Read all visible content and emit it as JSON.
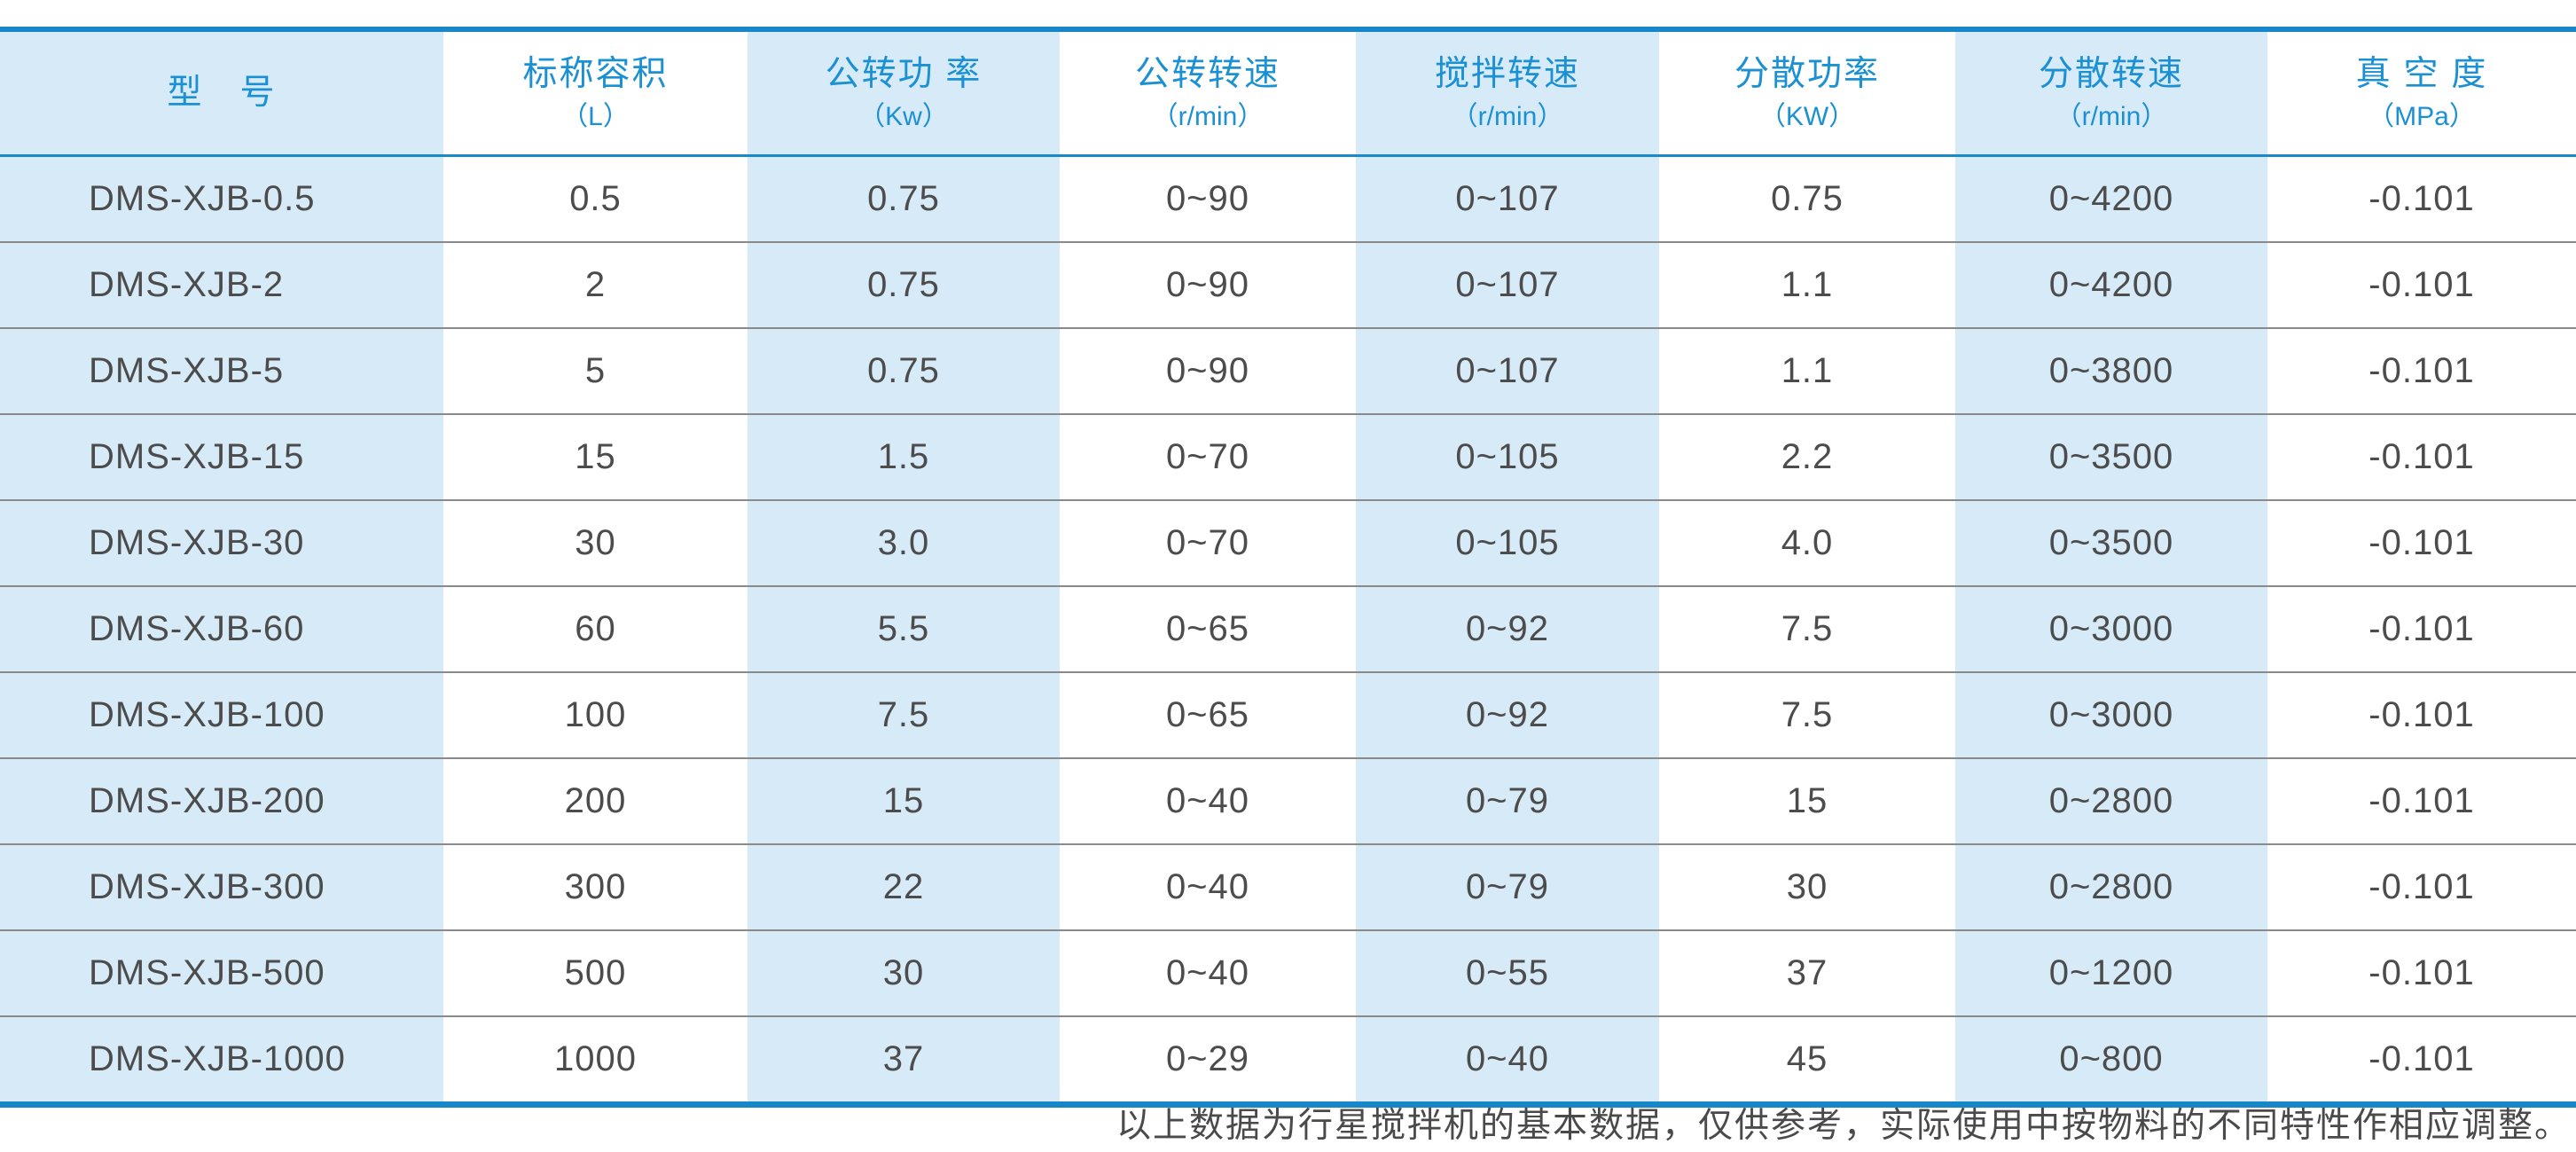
{
  "colors": {
    "accent_blue": "#1787c9",
    "header_text_blue": "#1b90d2",
    "shaded_cell_blue": "#d7eaf8",
    "body_text": "#4c4c4c",
    "row_divider": "#8a8a8a"
  },
  "table": {
    "columns": [
      {
        "title": "型　号",
        "unit": ""
      },
      {
        "title": "标称容积",
        "unit": "（L）"
      },
      {
        "title": "公转功 率",
        "unit": "（Kw）"
      },
      {
        "title": "公转转速",
        "unit": "（r/min）"
      },
      {
        "title": "搅拌转速",
        "unit": "（r/min）"
      },
      {
        "title": "分散功率",
        "unit": "（KW）"
      },
      {
        "title": "分散转速",
        "unit": "（r/min）"
      },
      {
        "title": "真 空 度",
        "unit": "（MPa）"
      }
    ],
    "rows": [
      [
        "DMS-XJB-0.5",
        "0.5",
        "0.75",
        "0~90",
        "0~107",
        "0.75",
        "0~4200",
        "-0.101"
      ],
      [
        "DMS-XJB-2",
        "2",
        "0.75",
        "0~90",
        "0~107",
        "1.1",
        "0~4200",
        "-0.101"
      ],
      [
        "DMS-XJB-5",
        "5",
        "0.75",
        "0~90",
        "0~107",
        "1.1",
        "0~3800",
        "-0.101"
      ],
      [
        "DMS-XJB-15",
        "15",
        "1.5",
        "0~70",
        "0~105",
        "2.2",
        "0~3500",
        "-0.101"
      ],
      [
        "DMS-XJB-30",
        "30",
        "3.0",
        "0~70",
        "0~105",
        "4.0",
        "0~3500",
        "-0.101"
      ],
      [
        "DMS-XJB-60",
        "60",
        "5.5",
        "0~65",
        "0~92",
        "7.5",
        "0~3000",
        "-0.101"
      ],
      [
        "DMS-XJB-100",
        "100",
        "7.5",
        "0~65",
        "0~92",
        "7.5",
        "0~3000",
        "-0.101"
      ],
      [
        "DMS-XJB-200",
        "200",
        "15",
        "0~40",
        "0~79",
        "15",
        "0~2800",
        "-0.101"
      ],
      [
        "DMS-XJB-300",
        "300",
        "22",
        "0~40",
        "0~79",
        "30",
        "0~2800",
        "-0.101"
      ],
      [
        "DMS-XJB-500",
        "500",
        "30",
        "0~40",
        "0~55",
        "37",
        "0~1200",
        "-0.101"
      ],
      [
        "DMS-XJB-1000",
        "1000",
        "37",
        "0~29",
        "0~40",
        "45",
        "0~800",
        "-0.101"
      ]
    ]
  },
  "footer": {
    "note": "以上数据为行星搅拌机的基本数据，仅供参考，实际使用中按物料的不同特性作相应调整。"
  }
}
